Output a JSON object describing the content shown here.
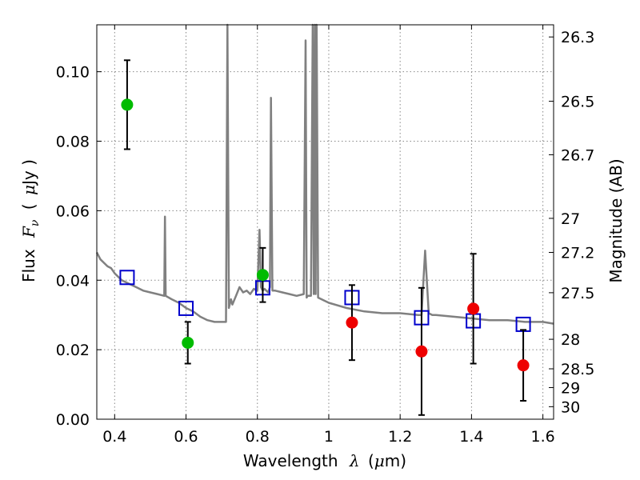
{
  "chart_data": {
    "type": "scatter",
    "xlabel": {
      "prefix": "Wavelength",
      "symbol": "λ",
      "unit_open": "(",
      "unit_mu": "μ",
      "unit_rest": "m)"
    },
    "ylabel": {
      "prefix": "Flux",
      "symbol": "F",
      "subscript": "ν",
      "unit_open": "(",
      "unit_mu": "μ",
      "unit_rest": "Jy )"
    },
    "y2label": "Magnitude (AB)",
    "xlim": [
      0.35,
      1.63
    ],
    "ylim": [
      0.0,
      0.1135
    ],
    "grid": true,
    "x_ticks": [
      0.4,
      0.6,
      0.8,
      1.0,
      1.2,
      1.4,
      1.6
    ],
    "x_tick_labels": [
      "0.4",
      "0.6",
      "0.8",
      "1",
      "1.2",
      "1.4",
      "1.6"
    ],
    "y_ticks": [
      0.0,
      0.02,
      0.04,
      0.06,
      0.08,
      0.1
    ],
    "y_tick_labels": [
      "0.00",
      "0.02",
      "0.04",
      "0.06",
      "0.08",
      "0.10"
    ],
    "y2_ticks": [
      {
        "label": "26.3",
        "flux": 0.11
      },
      {
        "label": "26.5",
        "flux": 0.0915
      },
      {
        "label": "26.7",
        "flux": 0.0761
      },
      {
        "label": "27",
        "flux": 0.0578
      },
      {
        "label": "27.2",
        "flux": 0.048
      },
      {
        "label": "27.5",
        "flux": 0.0364
      },
      {
        "label": "28",
        "flux": 0.023
      },
      {
        "label": "28.5",
        "flux": 0.0145
      },
      {
        "label": "29",
        "flux": 0.0091
      },
      {
        "label": "30",
        "flux": 0.0036
      }
    ],
    "series": [
      {
        "style": "line",
        "color": "#808080",
        "x": [
          0.35,
          0.36,
          0.37,
          0.38,
          0.39,
          0.4,
          0.42,
          0.44,
          0.46,
          0.48,
          0.5,
          0.52,
          0.539,
          0.541,
          0.543,
          0.56,
          0.58,
          0.6,
          0.62,
          0.64,
          0.66,
          0.68,
          0.7,
          0.712,
          0.716,
          0.72,
          0.726,
          0.73,
          0.74,
          0.75,
          0.76,
          0.77,
          0.78,
          0.79,
          0.8,
          0.806,
          0.81,
          0.815,
          0.82,
          0.83,
          0.835,
          0.838,
          0.842,
          0.85,
          0.87,
          0.89,
          0.91,
          0.93,
          0.935,
          0.938,
          0.941,
          0.95,
          0.955,
          0.958,
          0.961,
          0.963,
          0.966,
          0.97,
          0.98,
          1.0,
          1.05,
          1.1,
          1.15,
          1.2,
          1.25,
          1.26,
          1.27,
          1.28,
          1.29,
          1.3,
          1.35,
          1.4,
          1.45,
          1.5,
          1.55,
          1.6,
          1.63
        ],
        "y": [
          0.048,
          0.046,
          0.045,
          0.044,
          0.0435,
          0.042,
          0.04,
          0.039,
          0.038,
          0.037,
          0.0365,
          0.036,
          0.0355,
          0.0583,
          0.0355,
          0.0345,
          0.0335,
          0.032,
          0.031,
          0.0295,
          0.0285,
          0.028,
          0.028,
          0.028,
          0.1135,
          0.032,
          0.0345,
          0.033,
          0.0355,
          0.038,
          0.0365,
          0.037,
          0.036,
          0.0375,
          0.037,
          0.0545,
          0.038,
          0.037,
          0.0375,
          0.0365,
          0.038,
          0.0925,
          0.037,
          0.037,
          0.0365,
          0.036,
          0.0355,
          0.036,
          0.109,
          0.035,
          0.0355,
          0.0355,
          0.1135,
          0.036,
          0.1135,
          0.036,
          0.1135,
          0.035,
          0.0345,
          0.0335,
          0.032,
          0.031,
          0.0305,
          0.0305,
          0.03,
          0.03,
          0.0485,
          0.0305,
          0.03,
          0.03,
          0.0295,
          0.029,
          0.0285,
          0.0285,
          0.028,
          0.028,
          0.0275
        ]
      },
      {
        "style": "open-square",
        "color": "#0000cc",
        "x": [
          0.435,
          0.6,
          0.815,
          1.065,
          1.26,
          1.405,
          1.545
        ],
        "y": [
          0.0408,
          0.0319,
          0.0378,
          0.035,
          0.0292,
          0.0283,
          0.0273
        ]
      },
      {
        "style": "errorbar-point",
        "color": "#00bb00",
        "x": [
          0.435,
          0.605,
          0.815
        ],
        "y": [
          0.0905,
          0.022,
          0.0415
        ],
        "yerr": [
          0.0128,
          0.006,
          0.0078
        ]
      },
      {
        "style": "errorbar-point",
        "color": "#ee0000",
        "x": [
          1.065,
          1.26,
          1.405,
          1.545
        ],
        "y": [
          0.0278,
          0.0195,
          0.0318,
          0.0155
        ],
        "yerr": [
          0.0108,
          0.0183,
          0.0158,
          0.0102
        ]
      }
    ]
  }
}
